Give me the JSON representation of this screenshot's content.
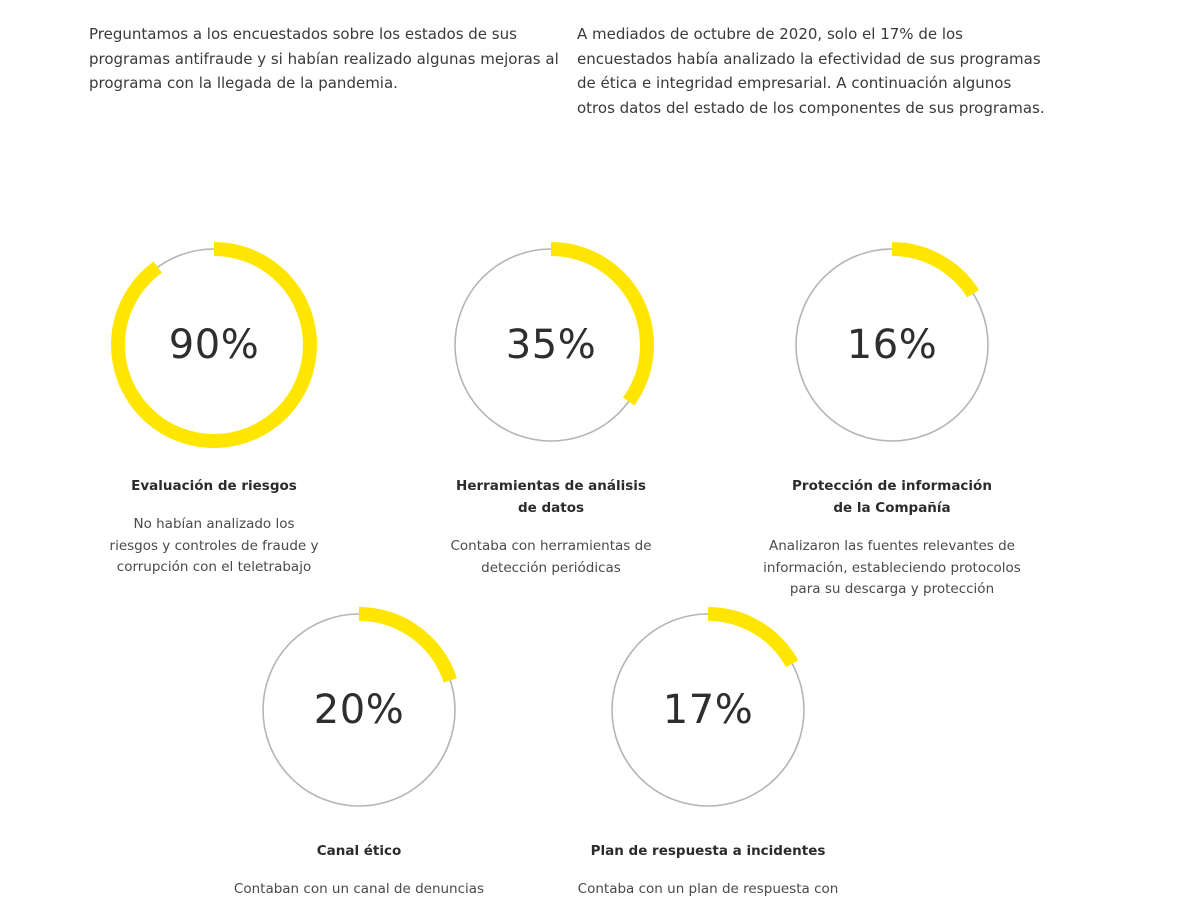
{
  "intro": {
    "left": "Preguntamos a los encuestados sobre los estados de sus programas antifraude y si habían realizado algunas mejoras al programa con la llegada de la pandemia.",
    "right": "A mediados de octubre de 2020, solo el 17% de los encuestados había analizado la efectividad de sus programas de ética e integridad empresarial.  A continuación algunos otros datos del estado de los componentes de sus programas."
  },
  "colors": {
    "accent": "#FFE600",
    "ring_track": "#b5b5b5"
  },
  "chart_data": [
    {
      "type": "pie",
      "value": 90,
      "label": "90%",
      "title": "Evaluación de riesgos",
      "description": "No habían analizado los\nriesgos y controles de fraude y\ncorrupción con el teletrabajo"
    },
    {
      "type": "pie",
      "value": 35,
      "label": "35%",
      "title": "Herramientas de análisis\nde datos",
      "description": "Contaba con herramientas de\ndetección periódicas"
    },
    {
      "type": "pie",
      "value": 16,
      "label": "16%",
      "title": "Protección de información\nde la Compañía",
      "description": "Analizaron las fuentes relevantes de\ninformación, estableciendo protocolos\npara su descarga y protección"
    },
    {
      "type": "pie",
      "value": 20,
      "label": "20%",
      "title": "Canal ético",
      "description": "Contaban con un canal de denuncias"
    },
    {
      "type": "pie",
      "value": 17,
      "label": "17%",
      "title": "Plan de respuesta a incidentes",
      "description": "Contaba con un plan de respuesta con"
    }
  ]
}
